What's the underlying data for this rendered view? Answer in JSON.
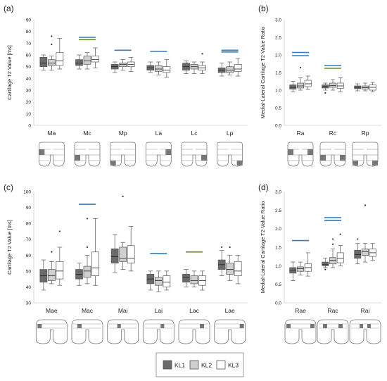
{
  "figure": {
    "legend": [
      {
        "key": "KL1",
        "label": "KL1",
        "color": "#6b6b6b"
      },
      {
        "key": "KL2",
        "label": "KL2",
        "color": "#cfcfcf"
      },
      {
        "key": "KL3",
        "label": "KL3",
        "color": "#ffffff"
      }
    ],
    "colors": {
      "significance_blue": "#2f7dbf",
      "significance_green": "#6b8e23",
      "box_stroke": "#555555"
    }
  },
  "chart_data": [
    {
      "panel": "(a)",
      "type": "box",
      "ylabel": "Cartilage T2 Value [ms]",
      "ylim": [
        0,
        90
      ],
      "yticks": [
        0,
        10,
        20,
        30,
        40,
        50,
        60,
        70,
        80,
        90
      ],
      "categories": [
        "Ma",
        "Mc",
        "Mp",
        "La",
        "Lc",
        "Lp"
      ],
      "series": [
        {
          "name": "KL1",
          "boxes": [
            {
              "min": 47,
              "q1": 50,
              "median": 53,
              "q3": 58,
              "max": 60,
              "outliers": []
            },
            {
              "min": 48,
              "q1": 51,
              "median": 53,
              "q3": 56,
              "max": 60,
              "outliers": []
            },
            {
              "min": 45,
              "q1": 48,
              "median": 50,
              "q3": 52,
              "max": 54,
              "outliers": []
            },
            {
              "min": 45,
              "q1": 47,
              "median": 49,
              "q3": 51,
              "max": 54,
              "outliers": []
            },
            {
              "min": 44,
              "q1": 47,
              "median": 50,
              "q3": 53,
              "max": 55,
              "outliers": []
            },
            {
              "min": 42,
              "q1": 45,
              "median": 47,
              "q3": 49,
              "max": 53,
              "outliers": []
            }
          ]
        },
        {
          "name": "KL2",
          "boxes": [
            {
              "min": 47,
              "q1": 51,
              "median": 53,
              "q3": 56,
              "max": 59,
              "outliers": [
                69,
                76
              ]
            },
            {
              "min": 48,
              "q1": 52,
              "median": 55,
              "q3": 59,
              "max": 62,
              "outliers": []
            },
            {
              "min": 47,
              "q1": 50,
              "median": 52,
              "q3": 53,
              "max": 56,
              "outliers": []
            },
            {
              "min": 43,
              "q1": 46,
              "median": 48,
              "q3": 51,
              "max": 54,
              "outliers": []
            },
            {
              "min": 44,
              "q1": 48,
              "median": 50,
              "q3": 52,
              "max": 54,
              "outliers": []
            },
            {
              "min": 43,
              "q1": 45,
              "median": 47,
              "q3": 50,
              "max": 54,
              "outliers": []
            }
          ]
        },
        {
          "name": "KL3",
          "boxes": [
            {
              "min": 48,
              "q1": 51,
              "median": 55,
              "q3": 62,
              "max": 74,
              "outliers": []
            },
            {
              "min": 49,
              "q1": 54,
              "median": 56,
              "q3": 59,
              "max": 66,
              "outliers": []
            },
            {
              "min": 46,
              "q1": 50,
              "median": 52,
              "q3": 54,
              "max": 58,
              "outliers": []
            },
            {
              "min": 41,
              "q1": 45,
              "median": 47,
              "q3": 50,
              "max": 56,
              "outliers": []
            },
            {
              "min": 44,
              "q1": 47,
              "median": 49,
              "q3": 51,
              "max": 54,
              "outliers": [
                61
              ]
            },
            {
              "min": 42,
              "q1": 46,
              "median": 48,
              "q3": 52,
              "max": 57,
              "outliers": []
            }
          ]
        }
      ],
      "sig_lines": [
        {
          "category": 1,
          "value": 75,
          "color": "blue"
        },
        {
          "category": 1,
          "value": 73,
          "color": "green"
        },
        {
          "category": 2,
          "value": 64,
          "color": "blue"
        },
        {
          "category": 3,
          "value": 63,
          "color": "blue"
        },
        {
          "category": 5,
          "value": 64,
          "color": "blue"
        },
        {
          "category": 5,
          "value": 62.5,
          "color": "blue"
        }
      ]
    },
    {
      "panel": "(b)",
      "type": "box",
      "ylabel": "Medial-Lateral Cartilage T2 Value Ratio",
      "ylim": [
        0,
        3.0
      ],
      "yticks": [
        0.0,
        0.5,
        1.0,
        1.5,
        2.0,
        2.5,
        3.0
      ],
      "categories": [
        "Ra",
        "Rc",
        "Rp"
      ],
      "series": [
        {
          "name": "KL1",
          "boxes": [
            {
              "min": 0.95,
              "q1": 1.03,
              "median": 1.08,
              "q3": 1.15,
              "max": 1.25,
              "outliers": []
            },
            {
              "min": 1.0,
              "q1": 1.06,
              "median": 1.1,
              "q3": 1.15,
              "max": 1.2,
              "outliers": [
                0.92
              ]
            },
            {
              "min": 0.98,
              "q1": 1.04,
              "median": 1.08,
              "q3": 1.12,
              "max": 1.18,
              "outliers": []
            }
          ]
        },
        {
          "name": "KL2",
          "boxes": [
            {
              "min": 1.0,
              "q1": 1.06,
              "median": 1.12,
              "q3": 1.2,
              "max": 1.35,
              "outliers": [
                1.64
              ]
            },
            {
              "min": 1.0,
              "q1": 1.08,
              "median": 1.13,
              "q3": 1.2,
              "max": 1.3,
              "outliers": []
            },
            {
              "min": 0.98,
              "q1": 1.03,
              "median": 1.07,
              "q3": 1.12,
              "max": 1.2,
              "outliers": []
            }
          ]
        },
        {
          "name": "KL3",
          "boxes": [
            {
              "min": 1.02,
              "q1": 1.1,
              "median": 1.18,
              "q3": 1.28,
              "max": 1.4,
              "outliers": []
            },
            {
              "min": 0.95,
              "q1": 1.05,
              "median": 1.12,
              "q3": 1.2,
              "max": 1.35,
              "outliers": []
            },
            {
              "min": 0.95,
              "q1": 1.0,
              "median": 1.08,
              "q3": 1.15,
              "max": 1.22,
              "outliers": []
            }
          ]
        }
      ],
      "sig_lines": [
        {
          "category": 0,
          "value": 2.07,
          "color": "blue"
        },
        {
          "category": 0,
          "value": 1.98,
          "color": "blue"
        },
        {
          "category": 1,
          "value": 1.7,
          "color": "blue"
        },
        {
          "category": 1,
          "value": 1.62,
          "color": "green"
        }
      ]
    },
    {
      "panel": "(c)",
      "type": "box",
      "ylabel": "Cartilage T2 Value [ms]",
      "ylim": [
        30,
        100
      ],
      "yticks": [
        30,
        40,
        50,
        60,
        70,
        80,
        90,
        100
      ],
      "categories": [
        "Mae",
        "Mac",
        "Mai",
        "Lai",
        "Lac",
        "Lae"
      ],
      "series": [
        {
          "name": "KL1",
          "boxes": [
            {
              "min": 38,
              "q1": 43,
              "median": 47,
              "q3": 51,
              "max": 57,
              "outliers": []
            },
            {
              "min": 41,
              "q1": 45,
              "median": 48,
              "q3": 51,
              "max": 55,
              "outliers": []
            },
            {
              "min": 49,
              "q1": 55,
              "median": 59,
              "q3": 64,
              "max": 73,
              "outliers": []
            },
            {
              "min": 38,
              "q1": 42,
              "median": 45,
              "q3": 48,
              "max": 50,
              "outliers": []
            },
            {
              "min": 40,
              "q1": 43,
              "median": 46,
              "q3": 48,
              "max": 51,
              "outliers": []
            },
            {
              "min": 47,
              "q1": 51,
              "median": 54,
              "q3": 57,
              "max": 63,
              "outliers": [
                65
              ]
            }
          ]
        },
        {
          "name": "KL2",
          "boxes": [
            {
              "min": 42,
              "q1": 44,
              "median": 47,
              "q3": 51,
              "max": 56,
              "outliers": [
                62
              ]
            },
            {
              "min": 42,
              "q1": 46,
              "median": 50,
              "q3": 53,
              "max": 60,
              "outliers": [
                65,
                83
              ]
            },
            {
              "min": 51,
              "q1": 56,
              "median": 58,
              "q3": 65,
              "max": 68,
              "outliers": [
                97
              ]
            },
            {
              "min": 37,
              "q1": 41,
              "median": 44,
              "q3": 46,
              "max": 50,
              "outliers": []
            },
            {
              "min": 40,
              "q1": 42,
              "median": 44,
              "q3": 47,
              "max": 50,
              "outliers": []
            },
            {
              "min": 44,
              "q1": 48,
              "median": 51,
              "q3": 55,
              "max": 60,
              "outliers": [
                65
              ]
            }
          ]
        },
        {
          "name": "KL3",
          "boxes": [
            {
              "min": 41,
              "q1": 45,
              "median": 50,
              "q3": 56,
              "max": 65,
              "outliers": [
                75
              ]
            },
            {
              "min": 41,
              "q1": 47,
              "median": 52,
              "q3": 62,
              "max": 83,
              "outliers": []
            },
            {
              "min": 50,
              "q1": 55,
              "median": 58,
              "q3": 66,
              "max": 78,
              "outliers": []
            },
            {
              "min": 38,
              "q1": 40,
              "median": 43,
              "q3": 47,
              "max": 50,
              "outliers": []
            },
            {
              "min": 38,
              "q1": 41,
              "median": 44,
              "q3": 47,
              "max": 50,
              "outliers": []
            },
            {
              "min": 42,
              "q1": 47,
              "median": 50,
              "q3": 56,
              "max": 60,
              "outliers": []
            }
          ]
        }
      ],
      "sig_lines": [
        {
          "category": 1,
          "value": 92,
          "color": "blue"
        },
        {
          "category": 3,
          "value": 61,
          "color": "blue"
        },
        {
          "category": 4,
          "value": 62,
          "color": "green"
        }
      ]
    },
    {
      "panel": "(d)",
      "type": "box",
      "ylabel": "Medial-Lateral Cartilage T2 Value Ratio",
      "ylim": [
        0,
        3.0
      ],
      "yticks": [
        0.0,
        0.5,
        1.0,
        1.5,
        2.0,
        2.5,
        3.0
      ],
      "categories": [
        "Rae",
        "Rac",
        "Rai"
      ],
      "series": [
        {
          "name": "KL1",
          "boxes": [
            {
              "min": 0.6,
              "q1": 0.8,
              "median": 0.88,
              "q3": 0.95,
              "max": 1.1,
              "outliers": []
            },
            {
              "min": 0.95,
              "q1": 1.0,
              "median": 1.03,
              "q3": 1.1,
              "max": 1.2,
              "outliers": [
                0.9
              ]
            },
            {
              "min": 1.05,
              "q1": 1.2,
              "median": 1.3,
              "q3": 1.42,
              "max": 1.6,
              "outliers": [
                1.72
              ]
            }
          ]
        },
        {
          "name": "KL2",
          "boxes": [
            {
              "min": 0.75,
              "q1": 0.85,
              "median": 0.92,
              "q3": 0.97,
              "max": 1.1,
              "outliers": []
            },
            {
              "min": 0.95,
              "q1": 1.05,
              "median": 1.15,
              "q3": 1.22,
              "max": 1.45,
              "outliers": [
                1.72,
                1.58
              ]
            },
            {
              "min": 1.1,
              "q1": 1.28,
              "median": 1.38,
              "q3": 1.45,
              "max": 1.6,
              "outliers": [
                2.63
              ]
            }
          ]
        },
        {
          "name": "KL3",
          "boxes": [
            {
              "min": 0.72,
              "q1": 0.85,
              "median": 0.95,
              "q3": 1.05,
              "max": 1.35,
              "outliers": []
            },
            {
              "min": 1.0,
              "q1": 1.08,
              "median": 1.2,
              "q3": 1.35,
              "max": 1.55,
              "outliers": [
                1.85
              ]
            },
            {
              "min": 1.15,
              "q1": 1.25,
              "median": 1.35,
              "q3": 1.45,
              "max": 1.6,
              "outliers": []
            }
          ]
        }
      ],
      "sig_lines": [
        {
          "category": 0,
          "value": 1.68,
          "color": "blue"
        },
        {
          "category": 1,
          "value": 2.3,
          "color": "blue"
        },
        {
          "category": 1,
          "value": 2.22,
          "color": "blue"
        }
      ]
    }
  ]
}
